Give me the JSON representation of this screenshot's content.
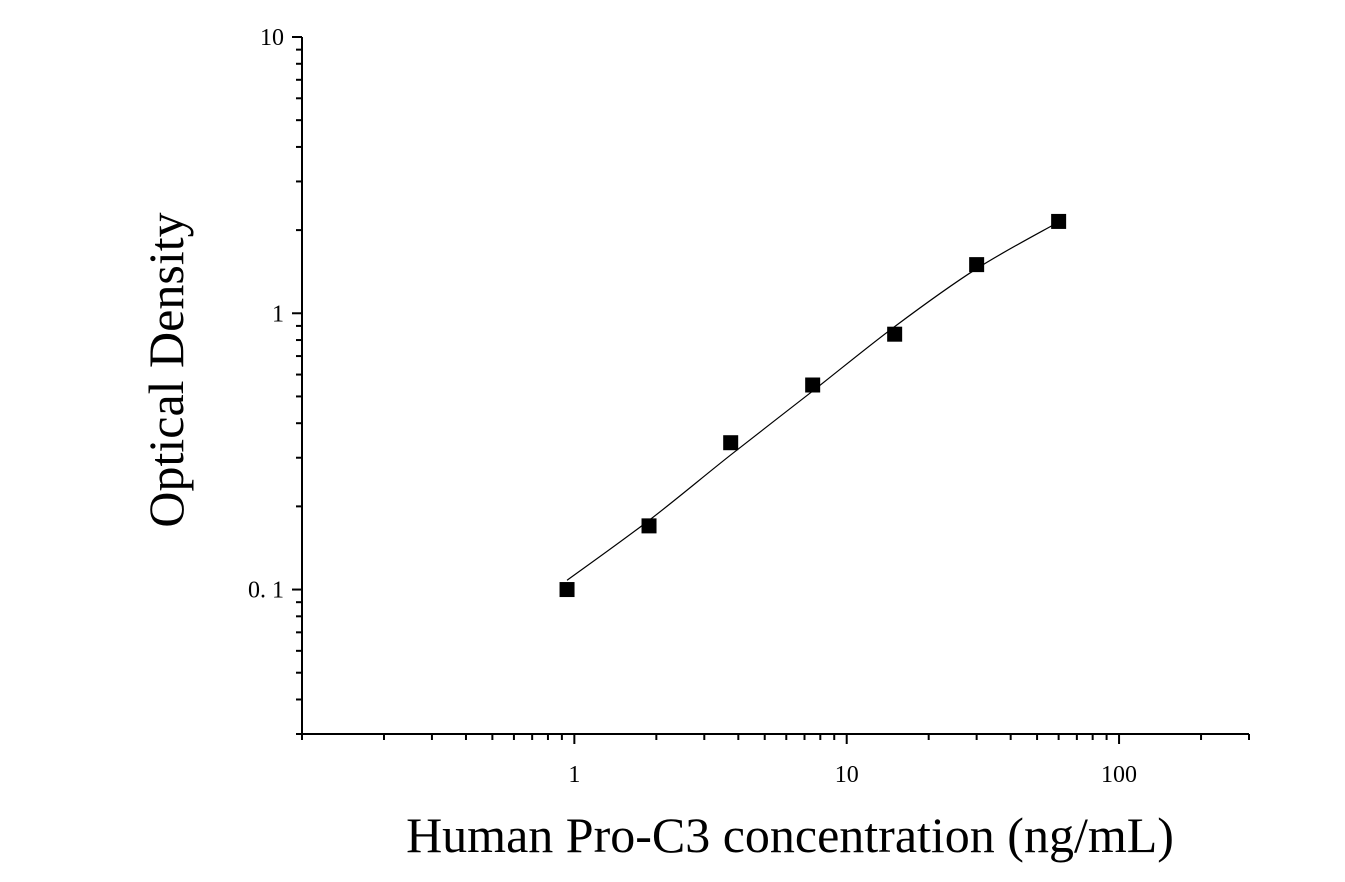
{
  "chart_data": {
    "type": "scatter",
    "title": "",
    "xlabel": "Human Pro-C3 concentration (ng/mL)",
    "ylabel": "Optical Density",
    "xscale": "log",
    "yscale": "log",
    "xlim": [
      0.1,
      300
    ],
    "ylim": [
      0.03,
      10
    ],
    "xticks": [
      {
        "value": 1,
        "label": "1"
      },
      {
        "value": 10,
        "label": "10"
      },
      {
        "value": 100,
        "label": "100"
      }
    ],
    "yticks": [
      {
        "value": 0.1,
        "label": "0. 1"
      },
      {
        "value": 1,
        "label": "1"
      },
      {
        "value": 10,
        "label": "10"
      }
    ],
    "grid": false,
    "legend": "none",
    "series": [
      {
        "marker": "square",
        "color": "#000000",
        "points": [
          {
            "x": 0.94,
            "y": 0.1
          },
          {
            "x": 1.88,
            "y": 0.17
          },
          {
            "x": 3.75,
            "y": 0.34
          },
          {
            "x": 7.5,
            "y": 0.55
          },
          {
            "x": 15,
            "y": 0.84
          },
          {
            "x": 30,
            "y": 1.5
          },
          {
            "x": 60,
            "y": 2.15
          }
        ]
      }
    ],
    "fit_curve": {
      "color": "#000000",
      "points": [
        {
          "x": 0.94,
          "y": 0.108
        },
        {
          "x": 1.88,
          "y": 0.178
        },
        {
          "x": 3.75,
          "y": 0.307
        },
        {
          "x": 7.5,
          "y": 0.523
        },
        {
          "x": 15,
          "y": 0.895
        },
        {
          "x": 30,
          "y": 1.45
        },
        {
          "x": 60,
          "y": 2.14
        }
      ]
    }
  }
}
